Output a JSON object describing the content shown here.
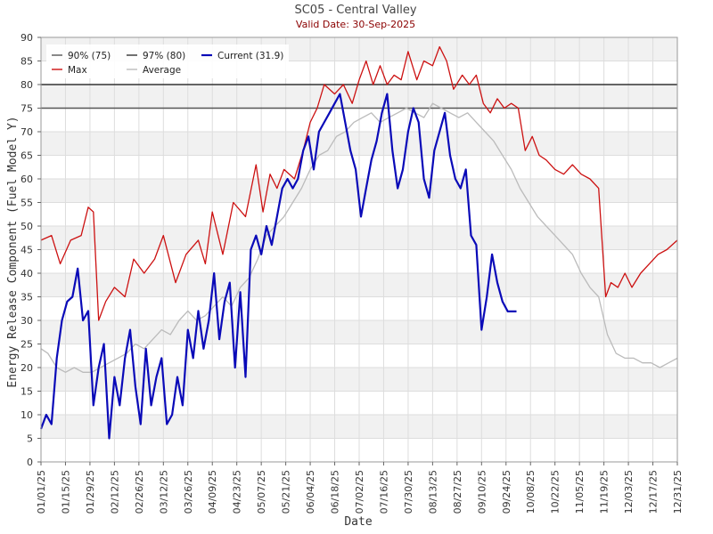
{
  "chart_data": {
    "type": "line",
    "title": "SC05 - Central Valley",
    "subtitle": "Valid Date: 30-Sep-2025",
    "xlabel": "Date",
    "ylabel": "Energy Release Component (Fuel Model Y)",
    "ylim": [
      0,
      90
    ],
    "yticks": [
      0,
      5,
      10,
      15,
      20,
      25,
      30,
      35,
      40,
      45,
      50,
      55,
      60,
      65,
      70,
      75,
      80,
      85,
      90
    ],
    "xlim": [
      "01/01/25",
      "12/31/25"
    ],
    "xticks": [
      "01/01/25",
      "01/15/25",
      "01/29/25",
      "02/12/25",
      "02/26/25",
      "03/12/25",
      "03/26/25",
      "04/09/25",
      "04/23/25",
      "05/07/25",
      "05/21/25",
      "06/04/25",
      "06/18/25",
      "07/02/25",
      "07/16/25",
      "07/30/25",
      "08/13/25",
      "08/27/25",
      "09/10/25",
      "09/24/25",
      "10/08/25",
      "10/22/25",
      "11/05/25",
      "11/19/25",
      "12/03/25",
      "12/17/25",
      "12/31/25"
    ],
    "grid": true,
    "banded_background": true,
    "legend_position": "top-left",
    "thresholds": [
      {
        "name": "90% (75)",
        "value": 75,
        "color": "#555555"
      },
      {
        "name": "97% (80)",
        "value": 80,
        "color": "#333333"
      }
    ],
    "series": [
      {
        "name": "Max",
        "color": "#cc1111",
        "x": [
          "01/01/25",
          "01/07/25",
          "01/12/25",
          "01/18/25",
          "01/24/25",
          "01/28/25",
          "01/31/25",
          "02/03/25",
          "02/07/25",
          "02/12/25",
          "02/18/25",
          "02/23/25",
          "03/01/25",
          "03/07/25",
          "03/12/25",
          "03/19/25",
          "03/25/25",
          "04/01/25",
          "04/05/25",
          "04/09/25",
          "04/15/25",
          "04/21/25",
          "04/28/25",
          "05/04/25",
          "05/08/25",
          "05/12/25",
          "05/16/25",
          "05/20/25",
          "05/26/25",
          "05/31/25",
          "06/04/25",
          "06/08/25",
          "06/12/25",
          "06/18/25",
          "06/23/25",
          "06/28/25",
          "07/02/25",
          "07/06/25",
          "07/10/25",
          "07/14/25",
          "07/18/25",
          "07/22/25",
          "07/26/25",
          "07/30/25",
          "08/04/25",
          "08/08/25",
          "08/13/25",
          "08/17/25",
          "08/21/25",
          "08/25/25",
          "08/30/25",
          "09/03/25",
          "09/07/25",
          "09/11/25",
          "09/15/25",
          "09/19/25",
          "09/23/25",
          "09/27/25",
          "10/01/25",
          "10/05/25",
          "10/09/25",
          "10/13/25",
          "10/17/25",
          "10/22/25",
          "10/27/25",
          "11/01/25",
          "11/06/25",
          "11/11/25",
          "11/16/25",
          "11/20/25",
          "11/23/25",
          "11/27/25",
          "12/01/25",
          "12/05/25",
          "12/10/25",
          "12/15/25",
          "12/20/25",
          "12/25/25",
          "12/31/25"
        ],
        "y": [
          47,
          48,
          42,
          47,
          48,
          54,
          53,
          30,
          34,
          37,
          35,
          43,
          40,
          43,
          48,
          38,
          44,
          47,
          42,
          53,
          44,
          55,
          52,
          63,
          53,
          61,
          58,
          62,
          60,
          66,
          72,
          75,
          80,
          78,
          80,
          76,
          81,
          85,
          80,
          84,
          80,
          82,
          81,
          87,
          81,
          85,
          84,
          88,
          85,
          79,
          82,
          80,
          82,
          76,
          74,
          77,
          75,
          76,
          75,
          66,
          69,
          65,
          64,
          62,
          61,
          63,
          61,
          60,
          58,
          35,
          38,
          37,
          40,
          37,
          40,
          42,
          44,
          45,
          47
        ]
      },
      {
        "name": "Average",
        "color": "#bbbbbb",
        "x": [
          "01/01/25",
          "01/05/25",
          "01/10/25",
          "01/15/25",
          "01/20/25",
          "01/25/25",
          "01/30/25",
          "02/04/25",
          "02/09/25",
          "02/14/25",
          "02/19/25",
          "02/24/25",
          "03/01/25",
          "03/06/25",
          "03/11/25",
          "03/16/25",
          "03/21/25",
          "03/26/25",
          "03/31/25",
          "04/05/25",
          "04/10/25",
          "04/15/25",
          "04/20/25",
          "04/25/25",
          "04/30/25",
          "05/05/25",
          "05/10/25",
          "05/15/25",
          "05/20/25",
          "05/25/25",
          "05/30/25",
          "06/04/25",
          "06/09/25",
          "06/14/25",
          "06/19/25",
          "06/24/25",
          "06/29/25",
          "07/04/25",
          "07/09/25",
          "07/14/25",
          "07/19/25",
          "07/24/25",
          "07/29/25",
          "08/03/25",
          "08/08/25",
          "08/13/25",
          "08/18/25",
          "08/23/25",
          "08/28/25",
          "09/02/25",
          "09/07/25",
          "09/12/25",
          "09/17/25",
          "09/22/25",
          "09/27/25",
          "10/02/25",
          "10/07/25",
          "10/12/25",
          "10/17/25",
          "10/22/25",
          "10/27/25",
          "11/01/25",
          "11/06/25",
          "11/11/25",
          "11/16/25",
          "11/21/25",
          "11/26/25",
          "12/01/25",
          "12/06/25",
          "12/11/25",
          "12/16/25",
          "12/21/25",
          "12/26/25",
          "12/31/25"
        ],
        "y": [
          24,
          23,
          20,
          19,
          20,
          19,
          19,
          20,
          21,
          22,
          23,
          25,
          24,
          26,
          28,
          27,
          30,
          32,
          30,
          31,
          33,
          35,
          33,
          37,
          39,
          43,
          48,
          50,
          52,
          55,
          58,
          62,
          65,
          66,
          69,
          70,
          72,
          73,
          74,
          72,
          73,
          74,
          75,
          74,
          73,
          76,
          75,
          74,
          73,
          74,
          72,
          70,
          68,
          65,
          62,
          58,
          55,
          52,
          50,
          48,
          46,
          44,
          40,
          37,
          35,
          27,
          23,
          22,
          22,
          21,
          21,
          20,
          21,
          22
        ]
      },
      {
        "name": "Current (31.9)",
        "color": "#0a0ab8",
        "x": [
          "01/01/25",
          "01/04/25",
          "01/07/25",
          "01/10/25",
          "01/13/25",
          "01/16/25",
          "01/19/25",
          "01/22/25",
          "01/25/25",
          "01/28/25",
          "01/31/25",
          "02/03/25",
          "02/06/25",
          "02/09/25",
          "02/12/25",
          "02/15/25",
          "02/18/25",
          "02/21/25",
          "02/24/25",
          "02/27/25",
          "03/02/25",
          "03/05/25",
          "03/08/25",
          "03/11/25",
          "03/14/25",
          "03/17/25",
          "03/20/25",
          "03/23/25",
          "03/26/25",
          "03/29/25",
          "04/01/25",
          "04/04/25",
          "04/07/25",
          "04/10/25",
          "04/13/25",
          "04/16/25",
          "04/19/25",
          "04/22/25",
          "04/25/25",
          "04/28/25",
          "05/01/25",
          "05/04/25",
          "05/07/25",
          "05/10/25",
          "05/13/25",
          "05/16/25",
          "05/19/25",
          "05/22/25",
          "05/25/25",
          "05/28/25",
          "05/31/25",
          "06/03/25",
          "06/06/25",
          "06/09/25",
          "06/12/25",
          "06/15/25",
          "06/18/25",
          "06/21/25",
          "06/24/25",
          "06/27/25",
          "06/30/25",
          "07/03/25",
          "07/06/25",
          "07/09/25",
          "07/12/25",
          "07/15/25",
          "07/18/25",
          "07/21/25",
          "07/24/25",
          "07/27/25",
          "07/30/25",
          "08/02/25",
          "08/05/25",
          "08/08/25",
          "08/11/25",
          "08/14/25",
          "08/17/25",
          "08/20/25",
          "08/23/25",
          "08/26/25",
          "08/29/25",
          "09/01/25",
          "09/04/25",
          "09/07/25",
          "09/10/25",
          "09/13/25",
          "09/16/25",
          "09/19/25",
          "09/22/25",
          "09/25/25",
          "09/28/25",
          "09/30/25"
        ],
        "y": [
          7,
          10,
          8,
          22,
          30,
          34,
          35,
          41,
          30,
          32,
          12,
          20,
          25,
          5,
          18,
          12,
          22,
          28,
          16,
          8,
          24,
          12,
          18,
          22,
          8,
          10,
          18,
          12,
          28,
          22,
          32,
          24,
          30,
          40,
          26,
          34,
          38,
          20,
          36,
          18,
          45,
          48,
          44,
          50,
          46,
          52,
          58,
          60,
          58,
          60,
          66,
          69,
          62,
          70,
          72,
          74,
          76,
          78,
          72,
          66,
          62,
          52,
          58,
          64,
          68,
          74,
          78,
          66,
          58,
          62,
          70,
          75,
          72,
          60,
          56,
          66,
          70,
          74,
          65,
          60,
          58,
          62,
          48,
          46,
          28,
          35,
          44,
          38,
          34,
          31.9,
          31.9,
          31.9
        ]
      }
    ]
  }
}
